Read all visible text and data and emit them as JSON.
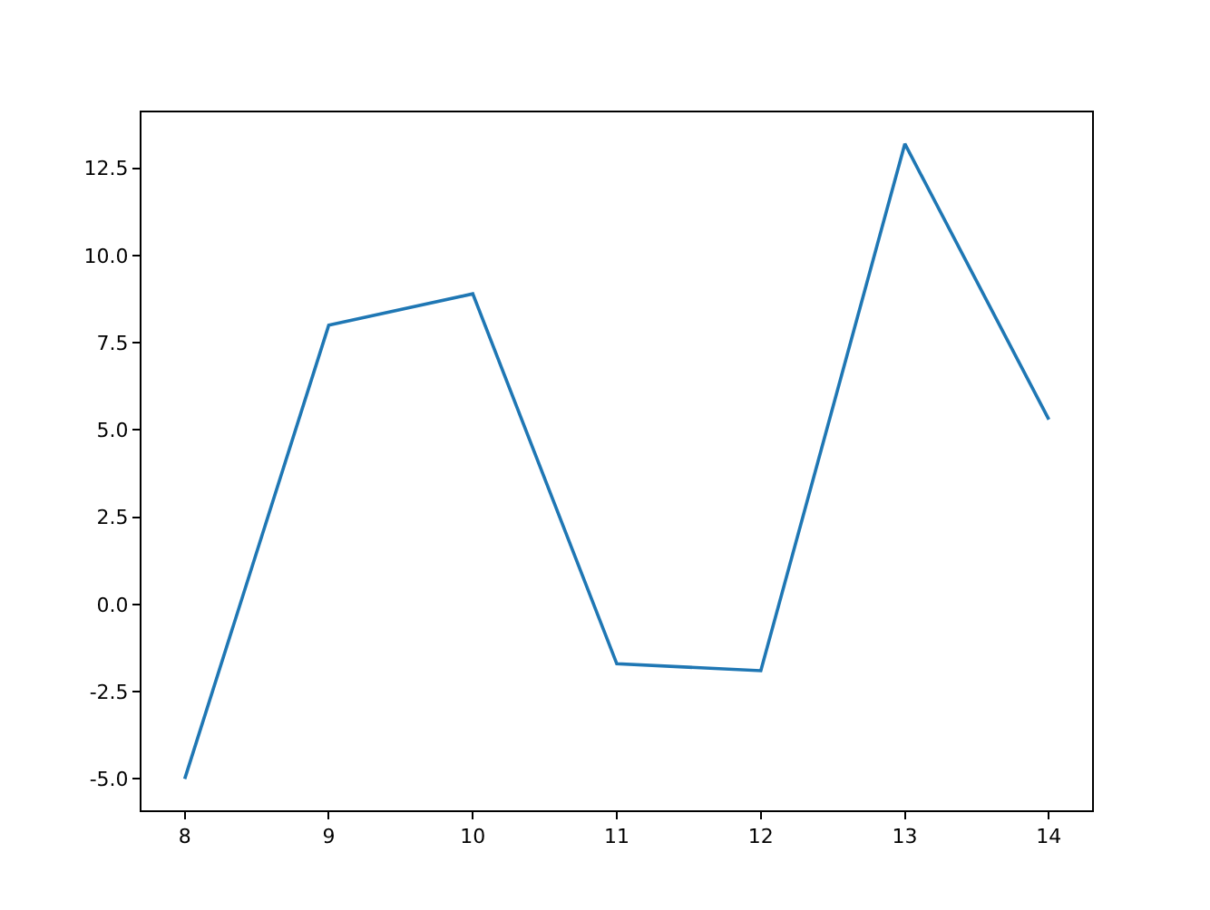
{
  "chart_data": {
    "type": "line",
    "x": [
      8,
      9,
      10,
      11,
      12,
      13,
      14
    ],
    "series": [
      {
        "color": "#1f77b4",
        "values": [
          -5.0,
          8.0,
          8.9,
          -1.7,
          -1.9,
          13.2,
          5.3
        ]
      }
    ],
    "xlim": [
      7.7,
      14.3
    ],
    "xticks": [
      8,
      9,
      10,
      11,
      12,
      13,
      14
    ],
    "ylim": [
      -5.9,
      14.1
    ],
    "yticks": [
      {
        "value": -5,
        "label": "-5.0"
      },
      {
        "value": -2.5,
        "label": "-2.5"
      },
      {
        "value": 0,
        "label": "0.0"
      },
      {
        "value": 2.5,
        "label": "2.5"
      },
      {
        "value": 5,
        "label": "5.0"
      },
      {
        "value": 7.5,
        "label": "7.5"
      },
      {
        "value": 10,
        "label": "10.0"
      },
      {
        "value": 12.5,
        "label": "12.5"
      }
    ],
    "grid": false,
    "legend": false,
    "marker": "none",
    "line_style": "solid"
  }
}
